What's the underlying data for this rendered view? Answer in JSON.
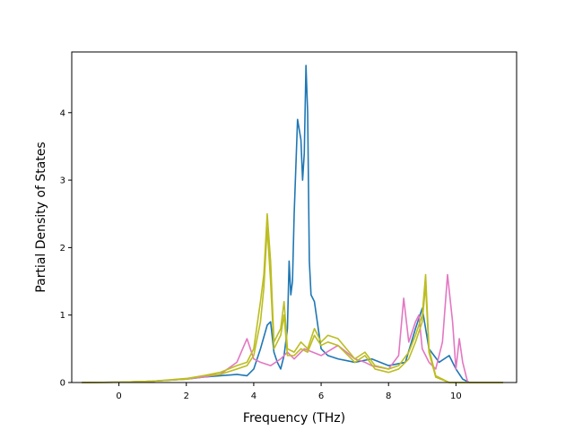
{
  "chart_data": {
    "type": "line",
    "title": "",
    "xlabel": "Frequency (THz)",
    "ylabel": "Partial Density of States",
    "xlim": [
      -1.4,
      11.8
    ],
    "ylim": [
      0,
      4.9
    ],
    "xticks": [
      0,
      2,
      4,
      6,
      8,
      10
    ],
    "yticks": [
      0,
      1,
      2,
      3,
      4
    ],
    "grid": false,
    "legend": "none",
    "series": [
      {
        "color": "#1f77b4",
        "points": [
          [
            -1.1,
            0
          ],
          [
            0,
            0.005
          ],
          [
            1,
            0.02
          ],
          [
            2,
            0.05
          ],
          [
            2.5,
            0.08
          ],
          [
            3,
            0.1
          ],
          [
            3.5,
            0.12
          ],
          [
            3.8,
            0.1
          ],
          [
            4.0,
            0.2
          ],
          [
            4.2,
            0.5
          ],
          [
            4.4,
            0.85
          ],
          [
            4.5,
            0.9
          ],
          [
            4.6,
            0.45
          ],
          [
            4.7,
            0.3
          ],
          [
            4.8,
            0.2
          ],
          [
            4.9,
            0.4
          ],
          [
            5.0,
            0.8
          ],
          [
            5.05,
            1.8
          ],
          [
            5.1,
            1.3
          ],
          [
            5.15,
            1.5
          ],
          [
            5.2,
            2.5
          ],
          [
            5.3,
            3.9
          ],
          [
            5.4,
            3.6
          ],
          [
            5.45,
            3.0
          ],
          [
            5.5,
            3.4
          ],
          [
            5.55,
            4.7
          ],
          [
            5.6,
            4.0
          ],
          [
            5.65,
            1.8
          ],
          [
            5.7,
            1.3
          ],
          [
            5.8,
            1.2
          ],
          [
            6.0,
            0.5
          ],
          [
            6.2,
            0.4
          ],
          [
            6.5,
            0.35
          ],
          [
            7.0,
            0.3
          ],
          [
            7.5,
            0.35
          ],
          [
            8.0,
            0.25
          ],
          [
            8.5,
            0.3
          ],
          [
            8.8,
            0.8
          ],
          [
            9.0,
            1.1
          ],
          [
            9.2,
            0.5
          ],
          [
            9.5,
            0.3
          ],
          [
            9.8,
            0.4
          ],
          [
            10.0,
            0.2
          ],
          [
            10.2,
            0.05
          ],
          [
            10.4,
            0
          ],
          [
            11.4,
            0
          ]
        ]
      },
      {
        "color": "#e377c2",
        "points": [
          [
            -1.1,
            0
          ],
          [
            0,
            0.005
          ],
          [
            1,
            0.02
          ],
          [
            2,
            0.05
          ],
          [
            2.5,
            0.08
          ],
          [
            3,
            0.12
          ],
          [
            3.5,
            0.3
          ],
          [
            3.8,
            0.65
          ],
          [
            4.0,
            0.35
          ],
          [
            4.2,
            0.3
          ],
          [
            4.5,
            0.25
          ],
          [
            4.8,
            0.35
          ],
          [
            5.0,
            0.45
          ],
          [
            5.2,
            0.35
          ],
          [
            5.5,
            0.5
          ],
          [
            6.0,
            0.4
          ],
          [
            6.5,
            0.55
          ],
          [
            7.0,
            0.35
          ],
          [
            7.3,
            0.3
          ],
          [
            7.5,
            0.25
          ],
          [
            8.0,
            0.2
          ],
          [
            8.3,
            0.4
          ],
          [
            8.45,
            1.25
          ],
          [
            8.6,
            0.6
          ],
          [
            8.8,
            0.9
          ],
          [
            8.9,
            1.0
          ],
          [
            9.0,
            0.5
          ],
          [
            9.2,
            0.3
          ],
          [
            9.4,
            0.2
          ],
          [
            9.6,
            0.6
          ],
          [
            9.75,
            1.6
          ],
          [
            9.9,
            0.9
          ],
          [
            10.0,
            0.2
          ],
          [
            10.1,
            0.65
          ],
          [
            10.2,
            0.3
          ],
          [
            10.35,
            0
          ],
          [
            11.4,
            0
          ]
        ]
      },
      {
        "color": "#bcbd22",
        "points": [
          [
            -1.1,
            0
          ],
          [
            0,
            0.005
          ],
          [
            1,
            0.02
          ],
          [
            2,
            0.05
          ],
          [
            2.5,
            0.1
          ],
          [
            3,
            0.15
          ],
          [
            3.5,
            0.25
          ],
          [
            3.8,
            0.3
          ],
          [
            4.0,
            0.5
          ],
          [
            4.2,
            1.2
          ],
          [
            4.3,
            1.6
          ],
          [
            4.4,
            2.5
          ],
          [
            4.5,
            1.8
          ],
          [
            4.6,
            0.6
          ],
          [
            4.8,
            0.8
          ],
          [
            4.9,
            1.2
          ],
          [
            5.0,
            0.5
          ],
          [
            5.2,
            0.45
          ],
          [
            5.4,
            0.6
          ],
          [
            5.6,
            0.5
          ],
          [
            5.8,
            0.8
          ],
          [
            6.0,
            0.6
          ],
          [
            6.2,
            0.7
          ],
          [
            6.5,
            0.65
          ],
          [
            7.0,
            0.35
          ],
          [
            7.3,
            0.45
          ],
          [
            7.6,
            0.25
          ],
          [
            8.0,
            0.2
          ],
          [
            8.3,
            0.25
          ],
          [
            8.6,
            0.45
          ],
          [
            8.8,
            0.7
          ],
          [
            9.0,
            1.0
          ],
          [
            9.1,
            1.6
          ],
          [
            9.2,
            0.5
          ],
          [
            9.4,
            0.1
          ],
          [
            9.6,
            0.05
          ],
          [
            9.8,
            0
          ],
          [
            11.4,
            0
          ]
        ]
      },
      {
        "color": "#bcbd22",
        "points": [
          [
            -1.1,
            0
          ],
          [
            0,
            0.005
          ],
          [
            1,
            0.02
          ],
          [
            2,
            0.06
          ],
          [
            2.5,
            0.1
          ],
          [
            3,
            0.12
          ],
          [
            3.5,
            0.2
          ],
          [
            3.8,
            0.25
          ],
          [
            4.0,
            0.4
          ],
          [
            4.2,
            0.9
          ],
          [
            4.3,
            1.4
          ],
          [
            4.4,
            2.3
          ],
          [
            4.5,
            1.5
          ],
          [
            4.6,
            0.5
          ],
          [
            4.8,
            0.7
          ],
          [
            4.9,
            1.0
          ],
          [
            5.0,
            0.4
          ],
          [
            5.2,
            0.4
          ],
          [
            5.4,
            0.5
          ],
          [
            5.6,
            0.45
          ],
          [
            5.8,
            0.7
          ],
          [
            6.0,
            0.55
          ],
          [
            6.2,
            0.6
          ],
          [
            6.5,
            0.55
          ],
          [
            7.0,
            0.3
          ],
          [
            7.3,
            0.4
          ],
          [
            7.6,
            0.2
          ],
          [
            8.0,
            0.15
          ],
          [
            8.3,
            0.2
          ],
          [
            8.6,
            0.35
          ],
          [
            8.8,
            0.6
          ],
          [
            9.0,
            0.9
          ],
          [
            9.1,
            1.45
          ],
          [
            9.2,
            0.45
          ],
          [
            9.4,
            0.08
          ],
          [
            9.6,
            0.04
          ],
          [
            9.8,
            0
          ],
          [
            11.4,
            0
          ]
        ]
      }
    ]
  }
}
